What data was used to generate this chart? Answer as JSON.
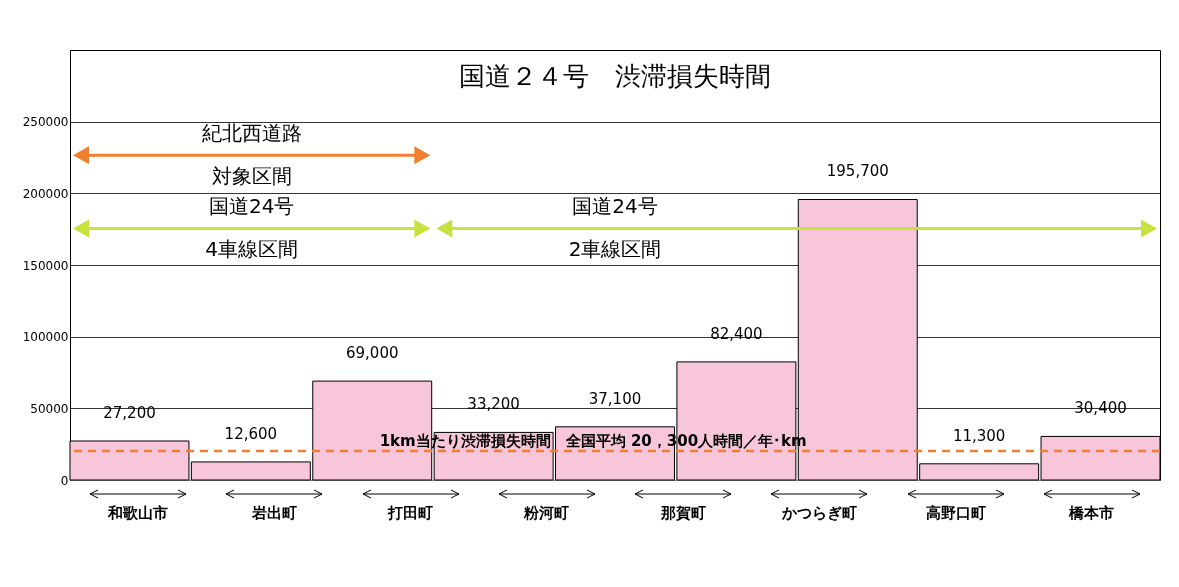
{
  "chart_data": {
    "type": "bar",
    "title": "国道２４号　渋滞損失時間",
    "categories": [
      null,
      null,
      null,
      null,
      null,
      null,
      null,
      null,
      null
    ],
    "values": [
      27200,
      12600,
      69000,
      33200,
      37100,
      82400,
      195700,
      11300,
      30400
    ],
    "value_labels": [
      "27,200",
      "12,600",
      "69,000",
      "33,200",
      "37,100",
      "82,400",
      "195,700",
      "11,300",
      "30,400"
    ],
    "color": "#f7c6da",
    "ylim": [
      0,
      300000
    ],
    "yticks": [
      0,
      50000,
      100000,
      150000,
      200000,
      250000
    ],
    "grid": "y",
    "ref_lines": [
      {
        "axis": "y",
        "value": 20300,
        "label": "1km当たり渋滞損失時間　全国平均 20，300人時間／年･km",
        "color": "#f08030",
        "line_style": "dashed"
      }
    ],
    "annotations": [
      "紀北西道路",
      "対象区間",
      "国道24号",
      "4車線区間",
      "国道24号",
      "2車線区間",
      "和歌山市",
      "岩出町",
      "打田町",
      "粉河町",
      "那賀町",
      "かつらぎ町",
      "高野口町",
      "橋本市"
    ]
  }
}
